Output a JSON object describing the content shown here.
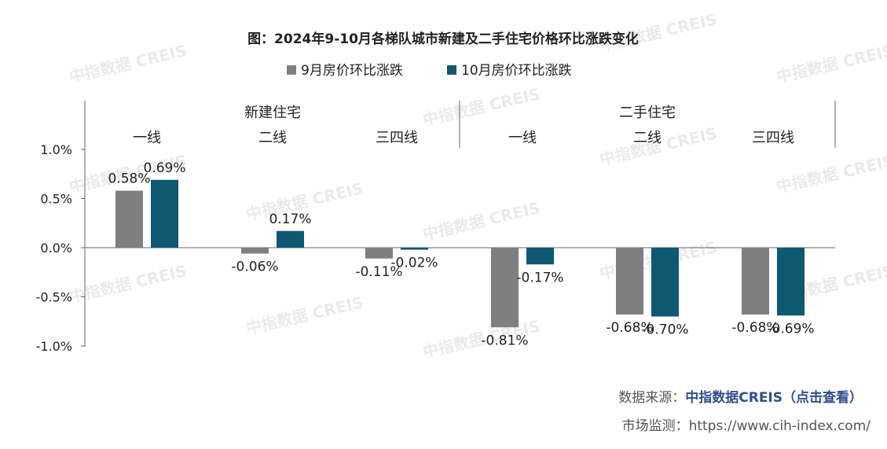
{
  "title": "图：2024年9-10月各梯队城市新建及二手住宅价格环比涨跌变化",
  "watermark": "中指数据 CREIS",
  "source_label": "数据来源：",
  "source_value": "中指数据CREIS（点击查看）",
  "monitor_line": "市场监测：https://www.cih-index.com/",
  "colors": {
    "sep": "#7f7f7f",
    "oct": "#0e5872"
  },
  "chart_data": {
    "type": "bar",
    "groups": [
      "新建住宅",
      "二手住宅"
    ],
    "categories": [
      "一线",
      "二线",
      "三四线",
      "一线",
      "二线",
      "三四线"
    ],
    "series": [
      {
        "name": "9月房价环比涨跌",
        "values": [
          0.58,
          -0.06,
          -0.11,
          -0.81,
          -0.68,
          -0.68
        ]
      },
      {
        "name": "10月房价环比涨跌",
        "values": [
          0.69,
          0.17,
          -0.02,
          -0.17,
          -0.7,
          -0.69
        ]
      }
    ],
    "data_labels": [
      [
        "0.58%",
        "-0.06%",
        "-0.11%",
        "-0.81%",
        "-0.68%",
        "-0.68%"
      ],
      [
        "0.69%",
        "0.17%",
        "-0.02%",
        "-0.17%",
        "-0.70%",
        "-0.69%"
      ]
    ],
    "y_ticks": [
      1.0,
      0.5,
      0.0,
      -0.5,
      -1.0
    ],
    "y_tick_labels": [
      "1.0%",
      "0.5%",
      "0.0%",
      "-0.5%",
      "-1.0%"
    ],
    "ylim": [
      -1.0,
      1.0
    ],
    "grid": false,
    "legend_position": "top"
  }
}
